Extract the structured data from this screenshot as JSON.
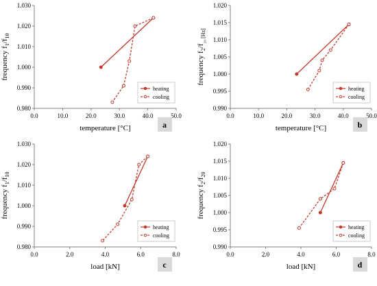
{
  "colors": {
    "series": "#c0392b",
    "axis": "#7f7f7f",
    "badge_bg": "#d9d9d9"
  },
  "legend": {
    "heating": "heating",
    "cooling": "cooling"
  },
  "chart_data": [
    {
      "type": "line",
      "panel_label": "a",
      "xlabel": "temperature [°C]",
      "ylabel": "frequency f",
      "ylabel_sub1": "1",
      "ylabel_mid": "/f",
      "ylabel_sub2": "10",
      "xlim": [
        0.0,
        50.0
      ],
      "ylim": [
        0.98,
        1.03
      ],
      "xticks": [
        "0.0",
        "10.0",
        "20.0",
        "30.0",
        "40.0",
        "50.0"
      ],
      "yticks": [
        "0.980",
        "0.990",
        "1.000",
        "1.010",
        "1.020",
        "1.030"
      ],
      "legend_position": "bottom-right",
      "series": [
        {
          "name": "heating",
          "style": "solid",
          "marker": "filled",
          "x": [
            23.5,
            42.0
          ],
          "y": [
            1.0,
            1.024
          ]
        },
        {
          "name": "cooling",
          "style": "dashed",
          "marker": "open",
          "x": [
            42.0,
            35.5,
            33.5,
            31.5,
            27.5
          ],
          "y": [
            1.024,
            1.02,
            1.003,
            0.991,
            0.983
          ]
        }
      ]
    },
    {
      "type": "line",
      "panel_label": "b",
      "xlabel": "temperature [°C]",
      "ylabel": "frequency f",
      "ylabel_sub1": "2",
      "ylabel_mid": "/f",
      "ylabel_sub2": "₂₀ [Hz]",
      "xlim": [
        0.0,
        50.0
      ],
      "ylim": [
        0.99,
        1.02
      ],
      "xticks": [
        "0.0",
        "10.0",
        "20.0",
        "30.0",
        "40.0",
        "50.0"
      ],
      "yticks": [
        "0.990",
        "0.995",
        "1.000",
        "1.005",
        "1.010",
        "1.015",
        "1.020"
      ],
      "legend_position": "bottom-right",
      "series": [
        {
          "name": "heating",
          "style": "solid",
          "marker": "filled",
          "x": [
            23.5,
            42.0
          ],
          "y": [
            1.0,
            1.0145
          ]
        },
        {
          "name": "cooling",
          "style": "dashed",
          "marker": "open",
          "x": [
            42.0,
            35.5,
            32.5,
            31.5,
            27.5
          ],
          "y": [
            1.0145,
            1.007,
            1.004,
            1.001,
            0.9955
          ]
        }
      ]
    },
    {
      "type": "line",
      "panel_label": "c",
      "xlabel": "load [kN]",
      "ylabel": "frequency f",
      "ylabel_sub1": "1",
      "ylabel_mid": "/f",
      "ylabel_sub2": "10",
      "xlim": [
        0.0,
        8.0
      ],
      "ylim": [
        0.98,
        1.03
      ],
      "xticks": [
        "0.0",
        "2.0",
        "4.0",
        "6.0",
        "8.0"
      ],
      "yticks": [
        "0.980",
        "0.990",
        "1.000",
        "1.010",
        "1.020",
        "1.030"
      ],
      "legend_position": "bottom-right",
      "series": [
        {
          "name": "heating",
          "style": "solid",
          "marker": "filled",
          "x": [
            5.1,
            6.4
          ],
          "y": [
            1.0,
            1.024
          ]
        },
        {
          "name": "cooling",
          "style": "dashed",
          "marker": "open",
          "x": [
            6.4,
            5.9,
            5.5,
            4.7,
            3.85
          ],
          "y": [
            1.024,
            1.02,
            1.003,
            0.991,
            0.983
          ]
        }
      ]
    },
    {
      "type": "line",
      "panel_label": "d",
      "xlabel": "load [kN]",
      "ylabel": "frequency f",
      "ylabel_sub1": "2",
      "ylabel_mid": "/f",
      "ylabel_sub2": "20",
      "xlim": [
        0.0,
        8.0
      ],
      "ylim": [
        0.99,
        1.02
      ],
      "xticks": [
        "0.0",
        "2.0",
        "4.0",
        "6.0",
        "8.0"
      ],
      "yticks": [
        "0.990",
        "0.995",
        "1.000",
        "1.005",
        "1.010",
        "1.015",
        "1.020"
      ],
      "legend_position": "bottom-right",
      "series": [
        {
          "name": "heating",
          "style": "solid",
          "marker": "filled",
          "x": [
            5.1,
            6.4
          ],
          "y": [
            1.0,
            1.0145
          ]
        },
        {
          "name": "cooling",
          "style": "dashed",
          "marker": "open",
          "x": [
            6.4,
            5.9,
            5.1,
            3.9
          ],
          "y": [
            1.0145,
            1.007,
            1.004,
            0.9955
          ]
        }
      ]
    }
  ]
}
